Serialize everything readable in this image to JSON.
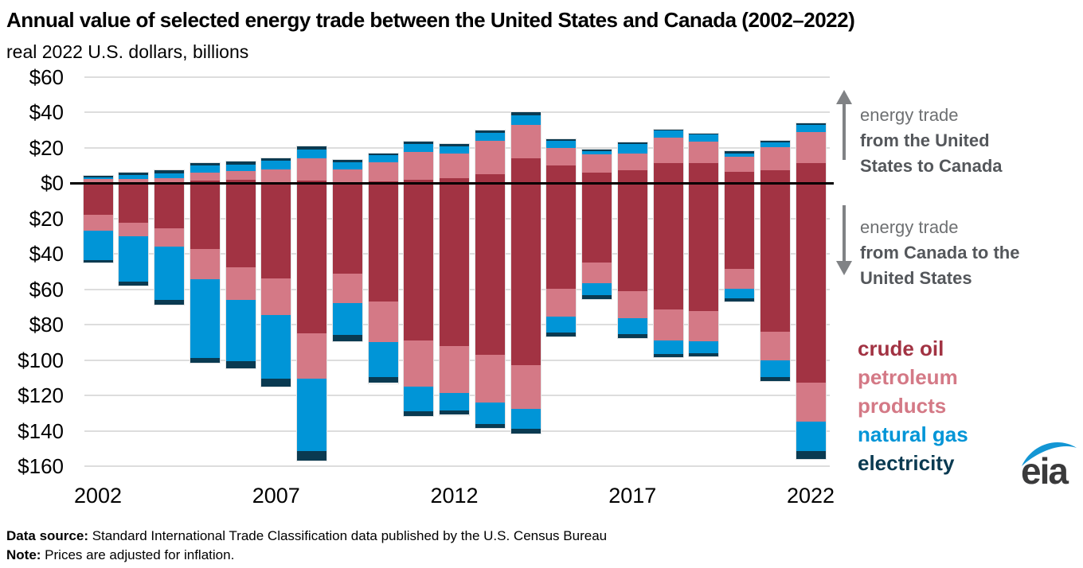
{
  "title": "Annual value of selected energy trade between the United States and Canada (2002–2022)",
  "subtitle": "real 2022 U.S. dollars, billions",
  "annotations": {
    "up": {
      "lines": [
        "energy trade",
        "from the United",
        "States to Canada"
      ]
    },
    "down": {
      "lines": [
        "energy trade",
        "from Canada to the",
        "United States"
      ]
    }
  },
  "legend": [
    {
      "label": "crude oil",
      "color": "#A23343"
    },
    {
      "label": "petroleum products",
      "color": "#D47986"
    },
    {
      "label": "natural gas",
      "color": "#0095D7"
    },
    {
      "label": "electricity",
      "color": "#0A3A51"
    }
  ],
  "footer": {
    "source_label": "Data source:",
    "source_text": " Standard International Trade Classification data published by the U.S. Census Bureau",
    "note_label": "Note:",
    "note_text": " Prices are adjusted for inflation."
  },
  "logo": {
    "text": "eia",
    "swoosh_color": "#1396D4",
    "text_color": "#3A3A3B"
  },
  "chart_data": {
    "type": "bar",
    "stacked": true,
    "diverging": true,
    "unit": "billion real 2022 U.S. dollars",
    "title": "Annual value of selected energy trade between the United States and Canada (2002–2022)",
    "positive_direction": "energy trade from the United States to Canada",
    "negative_direction": "energy trade from Canada to the United States",
    "x": [
      2002,
      2003,
      2004,
      2005,
      2006,
      2007,
      2008,
      2009,
      2010,
      2011,
      2012,
      2013,
      2014,
      2015,
      2016,
      2017,
      2018,
      2019,
      2020,
      2021,
      2022
    ],
    "x_tick_labels": [
      "2002",
      "2007",
      "2012",
      "2017",
      "2022"
    ],
    "ylim": [
      -160,
      60
    ],
    "ytick_interval": 20,
    "yticks": [
      {
        "value": 60,
        "label": "$60"
      },
      {
        "value": 40,
        "label": "$40"
      },
      {
        "value": 20,
        "label": "$20"
      },
      {
        "value": 0,
        "label": "$0"
      },
      {
        "value": -20,
        "label": "$20"
      },
      {
        "value": -40,
        "label": "$40"
      },
      {
        "value": -60,
        "label": "$60"
      },
      {
        "value": -80,
        "label": "$80"
      },
      {
        "value": -100,
        "label": "$100"
      },
      {
        "value": -120,
        "label": "$120"
      },
      {
        "value": -140,
        "label": "$140"
      },
      {
        "value": -160,
        "label": "$160"
      }
    ],
    "grid": true,
    "legend_position": "right",
    "series": [
      {
        "name": "crude oil",
        "color": "#A23343",
        "exports_to_canada": [
          0.3,
          0.3,
          0.4,
          1.5,
          2.0,
          0.5,
          1.5,
          0.5,
          1.0,
          2.0,
          3.0,
          5.0,
          14.0,
          10.0,
          6.0,
          7.5,
          11.5,
          11.5,
          6.5,
          7.5,
          11.5
        ],
        "imports_from_canada": [
          18,
          22.5,
          25.5,
          37,
          47.5,
          54,
          85,
          51,
          67,
          89,
          92,
          97,
          103,
          59.5,
          45,
          61,
          71.5,
          72.5,
          48.5,
          84,
          113
        ]
      },
      {
        "name": "petroleum products",
        "color": "#D47986",
        "exports_to_canada": [
          2.0,
          2.2,
          2.5,
          4.5,
          5.0,
          7.5,
          12.5,
          7.5,
          11.0,
          15.5,
          14.0,
          19.0,
          19.0,
          10.0,
          10.5,
          9.5,
          14.5,
          12.0,
          8.5,
          13.0,
          17.5
        ],
        "imports_from_canada": [
          9,
          7.5,
          10.5,
          17.5,
          18.5,
          20.5,
          25.5,
          17,
          23,
          26,
          26.5,
          27,
          24.5,
          16,
          11.5,
          15.5,
          17.5,
          17,
          11,
          16,
          22
        ]
      },
      {
        "name": "natural gas",
        "color": "#0095D7",
        "exports_to_canada": [
          1.2,
          2.2,
          2.7,
          3.9,
          3.6,
          4.8,
          5.0,
          4.0,
          4.0,
          4.5,
          4.0,
          4.5,
          5.5,
          4.0,
          1.5,
          5.0,
          4.0,
          4.0,
          2.0,
          2.5,
          4.0
        ],
        "imports_from_canada": [
          16.5,
          25.5,
          30,
          44.5,
          34.5,
          36,
          41,
          18,
          19.5,
          14,
          10,
          12,
          11.5,
          9,
          7,
          9,
          7.5,
          6.5,
          5.5,
          9.5,
          16.5
        ]
      },
      {
        "name": "electricity",
        "color": "#0A3A51",
        "exports_to_canada": [
          0.7,
          1.2,
          1.8,
          1.5,
          1.5,
          1.5,
          2.0,
          1.0,
          1.0,
          1.5,
          1.0,
          1.5,
          1.5,
          1.0,
          1.0,
          1.0,
          0.5,
          0.5,
          1.0,
          1.0,
          1.0
        ],
        "imports_from_canada": [
          1.5,
          2.5,
          2.5,
          2.5,
          4,
          4.5,
          5.5,
          3.5,
          3.5,
          2.5,
          2.5,
          2.5,
          2.5,
          2,
          2,
          2,
          2,
          2,
          2,
          2.5,
          4.5
        ]
      }
    ]
  }
}
